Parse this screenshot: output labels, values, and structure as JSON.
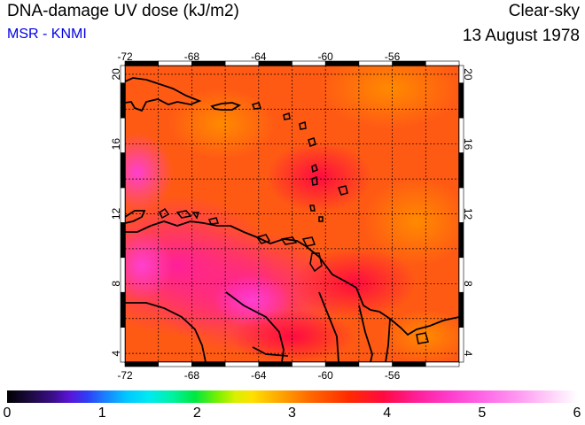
{
  "header": {
    "title": "DNA-damage UV dose (kJ/m2)",
    "subtitle": "MSR - KNMI",
    "condition": "Clear-sky",
    "date": "13 August 1978"
  },
  "map": {
    "lon_ticks": [
      "-72",
      "-68",
      "-64",
      "-60",
      "-56"
    ],
    "lat_ticks": [
      "4",
      "8",
      "12",
      "16",
      "20"
    ],
    "lon_range": [
      -72,
      -52
    ],
    "lat_range": [
      3.5,
      20.5
    ]
  },
  "colorbar": {
    "labels": [
      "0",
      "1",
      "2",
      "3",
      "4",
      "5",
      "6"
    ],
    "min": 0,
    "max": 6
  }
}
